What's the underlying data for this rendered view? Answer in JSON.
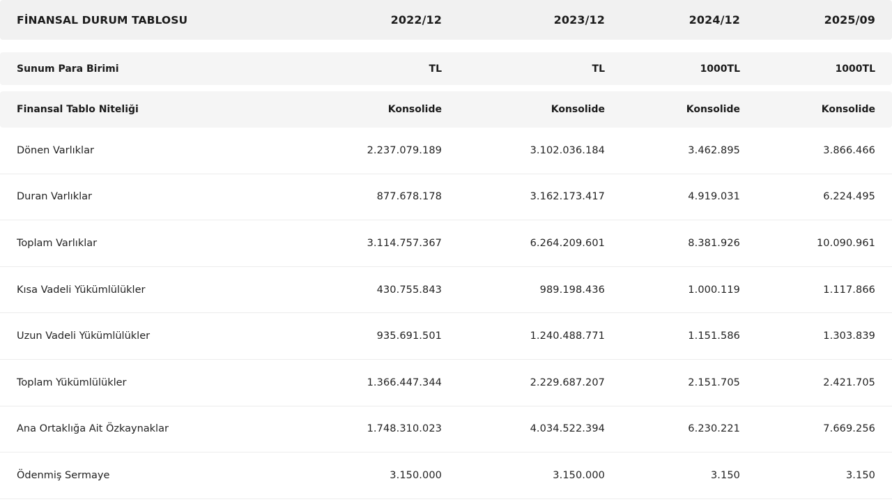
{
  "header": {
    "title": "FİNANSAL DURUM TABLOSU",
    "periods": [
      "2022/12",
      "2023/12",
      "2024/12",
      "2025/09"
    ]
  },
  "meta_rows": [
    {
      "label": "Sunum Para Birimi",
      "values": [
        "TL",
        "TL",
        "1000TL",
        "1000TL"
      ]
    },
    {
      "label": "Finansal Tablo Niteliği",
      "values": [
        "Konsolide",
        "Konsolide",
        "Konsolide",
        "Konsolide"
      ]
    }
  ],
  "rows": [
    {
      "label": "Dönen Varlıklar",
      "values": [
        "2.237.079.189",
        "3.102.036.184",
        "3.462.895",
        "3.866.466"
      ]
    },
    {
      "label": "Duran Varlıklar",
      "values": [
        "877.678.178",
        "3.162.173.417",
        "4.919.031",
        "6.224.495"
      ]
    },
    {
      "label": "Toplam Varlıklar",
      "values": [
        "3.114.757.367",
        "6.264.209.601",
        "8.381.926",
        "10.090.961"
      ]
    },
    {
      "label": "Kısa Vadeli Yükümlülükler",
      "values": [
        "430.755.843",
        "989.198.436",
        "1.000.119",
        "1.117.866"
      ]
    },
    {
      "label": "Uzun Vadeli Yükümlülükler",
      "values": [
        "935.691.501",
        "1.240.488.771",
        "1.151.586",
        "1.303.839"
      ]
    },
    {
      "label": "Toplam Yükümlülükler",
      "values": [
        "1.366.447.344",
        "2.229.687.207",
        "2.151.705",
        "2.421.705"
      ]
    },
    {
      "label": "Ana Ortaklığa Ait Özkaynaklar",
      "values": [
        "1.748.310.023",
        "4.034.522.394",
        "6.230.221",
        "7.669.256"
      ]
    },
    {
      "label": "Ödenmiş Sermaye",
      "values": [
        "3.150.000",
        "3.150.000",
        "3.150",
        "3.150"
      ]
    }
  ]
}
